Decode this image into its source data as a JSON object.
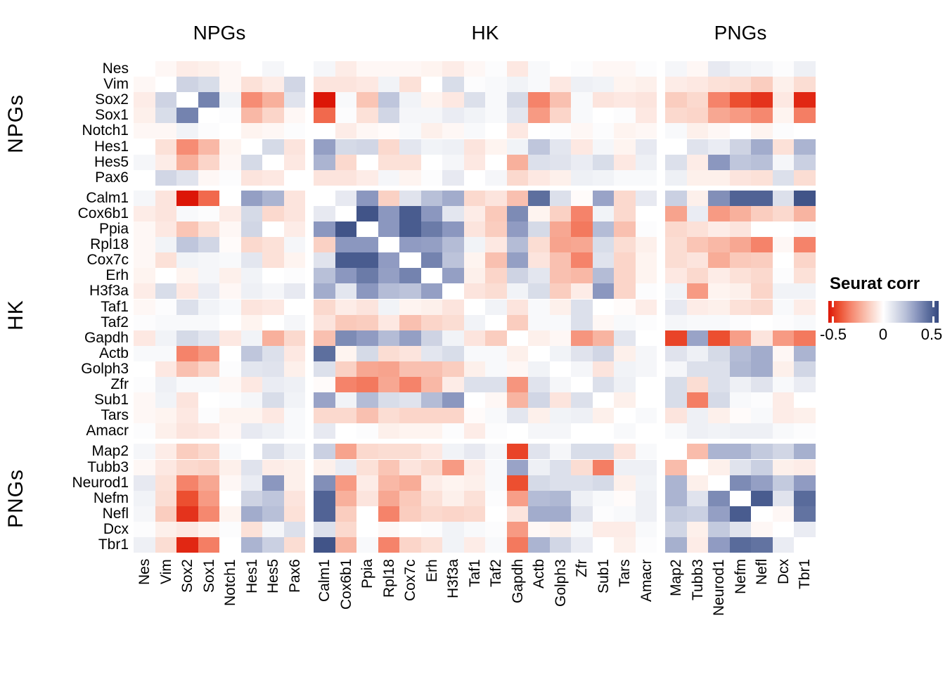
{
  "chart_data": {
    "type": "heatmap",
    "title": "",
    "legend": {
      "title": "Seurat corr",
      "ticks": [
        "-0.5",
        "0",
        "0.5"
      ],
      "range": [
        -0.5,
        0.5
      ],
      "low_color": "#DC1607",
      "mid_color": "#FFFFFF",
      "high_color": "#35487F"
    },
    "col_groups": [
      {
        "label": "NPGs",
        "span": 8
      },
      {
        "label": "HK",
        "span": 16
      },
      {
        "label": "PNGs",
        "span": 7
      }
    ],
    "row_groups": [
      {
        "label": "NPGs",
        "span": 8
      },
      {
        "label": "HK",
        "span": 16
      },
      {
        "label": "PNGs",
        "span": 7
      }
    ],
    "genes": [
      "Nes",
      "Vim",
      "Sox2",
      "Sox1",
      "Notch1",
      "Hes1",
      "Hes5",
      "Pax6",
      "Calm1",
      "Cox6b1",
      "Ppia",
      "Rpl18",
      "Cox7c",
      "Erh",
      "H3f3a",
      "Taf1",
      "Taf2",
      "Gapdh",
      "Actb",
      "Golph3",
      "Zfr",
      "Sub1",
      "Tars",
      "Amacr",
      "Map2",
      "Tubb3",
      "Neurod1",
      "Nefm",
      "Nefl",
      "Dcx",
      "Tbr1"
    ],
    "matrix": [
      [
        null,
        -0.02,
        -0.05,
        -0.04,
        -0.02,
        0.0,
        0.03,
        0.0,
        0.03,
        -0.05,
        -0.02,
        -0.02,
        -0.02,
        -0.03,
        -0.05,
        -0.02,
        0.01,
        -0.06,
        0.02,
        0.0,
        0.01,
        -0.02,
        -0.02,
        0.01,
        0.03,
        -0.02,
        0.07,
        0.04,
        0.03,
        0.01,
        0.05
      ],
      [
        -0.02,
        null,
        0.14,
        0.11,
        -0.02,
        -0.08,
        -0.05,
        0.13,
        -0.07,
        -0.07,
        -0.06,
        0.04,
        -0.08,
        0.0,
        0.11,
        0.01,
        0.02,
        0.04,
        0.02,
        -0.06,
        0.05,
        0.04,
        -0.03,
        -0.04,
        -0.05,
        -0.06,
        -0.08,
        -0.09,
        -0.13,
        -0.04,
        -0.09
      ],
      [
        -0.05,
        0.14,
        null,
        0.35,
        0.04,
        -0.28,
        -0.2,
        0.09,
        -0.5,
        0.02,
        -0.15,
        0.18,
        0.04,
        -0.03,
        -0.06,
        0.1,
        0.02,
        0.12,
        -0.3,
        -0.16,
        0.02,
        -0.07,
        -0.06,
        -0.07,
        -0.13,
        -0.1,
        -0.3,
        -0.4,
        -0.45,
        -0.06,
        -0.47
      ],
      [
        -0.04,
        0.11,
        0.35,
        null,
        0.01,
        -0.18,
        -0.11,
        -0.02,
        -0.35,
        0.01,
        -0.08,
        0.13,
        0.03,
        0.03,
        0.06,
        0.04,
        0.02,
        0.08,
        -0.25,
        -0.11,
        0.02,
        0.0,
        0.01,
        -0.06,
        -0.1,
        -0.11,
        -0.22,
        -0.25,
        -0.29,
        -0.03,
        -0.31
      ],
      [
        -0.02,
        -0.02,
        0.04,
        0.01,
        null,
        -0.03,
        -0.02,
        0.01,
        0.0,
        -0.05,
        -0.02,
        -0.01,
        0.02,
        -0.04,
        -0.02,
        0.02,
        0.0,
        -0.06,
        0.0,
        0.01,
        -0.02,
        0.01,
        -0.03,
        -0.02,
        0.02,
        -0.04,
        -0.02,
        0.0,
        -0.03,
        0.01,
        0.0
      ],
      [
        0.0,
        -0.08,
        -0.28,
        -0.18,
        -0.03,
        null,
        0.12,
        -0.07,
        0.28,
        0.12,
        0.13,
        -0.1,
        0.08,
        0.04,
        0.05,
        -0.07,
        -0.03,
        0.04,
        0.18,
        0.08,
        -0.06,
        0.03,
        -0.03,
        0.07,
        0.0,
        0.09,
        0.06,
        0.14,
        0.25,
        -0.08,
        0.23
      ],
      [
        0.03,
        -0.05,
        -0.2,
        -0.11,
        -0.02,
        0.12,
        null,
        -0.06,
        0.23,
        -0.1,
        0.0,
        -0.08,
        -0.08,
        0.0,
        0.03,
        -0.06,
        0.0,
        -0.2,
        0.1,
        0.09,
        0.06,
        0.11,
        -0.06,
        0.05,
        0.1,
        -0.05,
        0.3,
        0.18,
        0.2,
        0.03,
        0.15
      ],
      [
        0.0,
        0.13,
        0.09,
        -0.02,
        0.01,
        -0.07,
        -0.06,
        null,
        -0.07,
        -0.07,
        -0.05,
        0.03,
        -0.03,
        0.01,
        0.07,
        0.0,
        0.03,
        -0.1,
        -0.06,
        -0.04,
        0.05,
        0.04,
        0.02,
        0.02,
        0.05,
        -0.04,
        -0.04,
        -0.07,
        -0.08,
        0.1,
        -0.09
      ],
      [
        0.03,
        -0.07,
        -0.5,
        -0.35,
        0.0,
        0.28,
        0.23,
        -0.07,
        null,
        0.07,
        0.3,
        -0.12,
        0.09,
        0.2,
        0.25,
        -0.1,
        -0.07,
        -0.16,
        0.4,
        0.1,
        -0.01,
        0.27,
        -0.1,
        0.07,
        0.15,
        -0.04,
        0.32,
        0.43,
        0.43,
        0.1,
        0.47
      ],
      [
        -0.05,
        -0.07,
        0.02,
        0.01,
        -0.05,
        0.12,
        -0.1,
        -0.07,
        0.07,
        null,
        0.47,
        0.3,
        0.45,
        0.3,
        0.08,
        -0.05,
        -0.14,
        0.33,
        -0.03,
        -0.12,
        -0.3,
        0.04,
        -0.1,
        0.0,
        -0.23,
        0.06,
        -0.25,
        -0.2,
        -0.13,
        -0.1,
        -0.19
      ],
      [
        -0.02,
        -0.06,
        -0.15,
        -0.08,
        -0.02,
        0.13,
        0.0,
        -0.05,
        0.3,
        0.47,
        null,
        0.3,
        0.45,
        0.37,
        0.3,
        -0.07,
        -0.13,
        0.29,
        0.12,
        -0.22,
        -0.32,
        0.21,
        -0.16,
        0.01,
        -0.1,
        -0.08,
        -0.05,
        -0.07,
        0.0,
        0.0,
        0.02
      ],
      [
        -0.02,
        0.04,
        0.18,
        0.13,
        -0.01,
        -0.1,
        -0.08,
        0.03,
        -0.12,
        0.3,
        0.3,
        null,
        0.29,
        0.28,
        0.21,
        0.04,
        -0.06,
        0.21,
        -0.09,
        -0.23,
        -0.22,
        0.11,
        -0.09,
        -0.04,
        -0.09,
        -0.15,
        -0.18,
        -0.22,
        -0.3,
        -0.02,
        -0.3
      ],
      [
        -0.02,
        -0.08,
        0.04,
        0.03,
        0.02,
        0.08,
        -0.08,
        -0.03,
        0.09,
        0.45,
        0.45,
        0.29,
        null,
        0.35,
        0.19,
        -0.03,
        -0.16,
        0.28,
        -0.07,
        -0.16,
        -0.3,
        0.09,
        -0.11,
        -0.03,
        -0.09,
        -0.07,
        -0.21,
        -0.14,
        -0.13,
        0.0,
        -0.11
      ],
      [
        -0.03,
        0.0,
        -0.03,
        0.03,
        -0.04,
        0.04,
        0.0,
        0.01,
        0.2,
        0.3,
        0.37,
        0.28,
        0.35,
        null,
        0.28,
        -0.04,
        -0.11,
        0.14,
        0.08,
        -0.16,
        -0.18,
        0.21,
        -0.11,
        -0.03,
        -0.06,
        -0.1,
        -0.05,
        -0.08,
        -0.1,
        0.01,
        -0.08
      ],
      [
        -0.05,
        0.11,
        -0.06,
        0.06,
        -0.02,
        0.05,
        0.03,
        0.07,
        0.25,
        0.08,
        0.3,
        0.21,
        0.19,
        0.28,
        null,
        -0.07,
        -0.09,
        0.04,
        0.11,
        -0.13,
        -0.05,
        0.3,
        -0.11,
        0.01,
        0.04,
        -0.25,
        -0.03,
        -0.04,
        -0.11,
        0.04,
        0.04
      ],
      [
        -0.02,
        0.01,
        0.1,
        0.04,
        0.02,
        -0.07,
        -0.06,
        0.0,
        -0.1,
        -0.05,
        -0.07,
        0.04,
        -0.03,
        -0.04,
        -0.07,
        null,
        0.04,
        -0.07,
        0.02,
        -0.04,
        0.1,
        0.0,
        -0.01,
        -0.05,
        0.07,
        -0.05,
        -0.04,
        -0.08,
        -0.1,
        0.02,
        -0.05
      ],
      [
        0.01,
        0.02,
        0.02,
        0.02,
        0.0,
        -0.03,
        0.0,
        0.03,
        -0.07,
        -0.14,
        -0.13,
        -0.06,
        -0.16,
        -0.11,
        -0.09,
        0.04,
        null,
        -0.13,
        0.02,
        0.02,
        0.1,
        -0.02,
        0.02,
        0.01,
        0.03,
        0.02,
        0.02,
        0.01,
        0.0,
        0.01,
        0.02
      ],
      [
        -0.06,
        0.04,
        0.12,
        0.08,
        -0.06,
        0.04,
        -0.2,
        -0.1,
        -0.16,
        0.33,
        0.29,
        0.21,
        0.28,
        0.14,
        0.04,
        -0.07,
        -0.13,
        null,
        -0.04,
        -0.02,
        -0.26,
        -0.19,
        0.08,
        0.0,
        -0.42,
        0.27,
        -0.4,
        -0.24,
        -0.07,
        -0.25,
        -0.32
      ],
      [
        0.02,
        0.02,
        -0.3,
        -0.25,
        0.0,
        0.18,
        0.1,
        -0.06,
        0.4,
        -0.03,
        0.12,
        -0.09,
        -0.07,
        0.08,
        0.11,
        0.02,
        0.02,
        -0.04,
        null,
        0.04,
        0.09,
        0.13,
        -0.04,
        0.03,
        0.09,
        0.05,
        0.12,
        0.21,
        0.25,
        -0.02,
        0.23
      ],
      [
        0.0,
        -0.06,
        -0.16,
        -0.11,
        0.01,
        0.08,
        0.09,
        -0.04,
        0.1,
        -0.12,
        -0.22,
        -0.23,
        -0.16,
        -0.16,
        -0.13,
        -0.04,
        0.02,
        -0.02,
        0.04,
        null,
        0.03,
        -0.07,
        0.04,
        0.03,
        0.03,
        0.1,
        0.1,
        0.22,
        0.25,
        -0.04,
        0.13
      ],
      [
        0.01,
        0.05,
        0.02,
        0.02,
        -0.02,
        -0.06,
        0.06,
        0.05,
        -0.01,
        -0.3,
        -0.32,
        -0.22,
        -0.3,
        -0.18,
        -0.05,
        0.1,
        0.1,
        -0.26,
        0.09,
        0.03,
        null,
        0.1,
        0.05,
        0.0,
        0.11,
        -0.09,
        0.1,
        0.05,
        0.09,
        0.02,
        0.06
      ],
      [
        -0.02,
        0.04,
        -0.07,
        0.0,
        0.01,
        0.03,
        0.11,
        0.04,
        0.27,
        0.04,
        0.21,
        0.11,
        0.09,
        0.21,
        0.3,
        0.0,
        -0.02,
        -0.19,
        0.13,
        -0.07,
        0.1,
        null,
        -0.04,
        0.0,
        0.11,
        -0.31,
        0.12,
        0.02,
        0.01,
        -0.05,
        0.0
      ],
      [
        -0.02,
        -0.03,
        -0.06,
        0.01,
        -0.03,
        -0.03,
        -0.06,
        0.02,
        -0.1,
        -0.1,
        -0.16,
        -0.09,
        -0.11,
        -0.11,
        -0.11,
        -0.01,
        0.02,
        0.08,
        -0.04,
        0.04,
        0.05,
        -0.04,
        null,
        0.02,
        -0.07,
        0.05,
        -0.04,
        -0.01,
        0.02,
        -0.05,
        -0.04
      ],
      [
        0.01,
        -0.04,
        -0.07,
        -0.06,
        -0.02,
        0.07,
        0.05,
        0.02,
        0.07,
        0.0,
        0.01,
        -0.04,
        -0.03,
        -0.03,
        0.01,
        -0.05,
        0.01,
        0.0,
        0.03,
        0.03,
        0.0,
        0.0,
        0.02,
        null,
        0.02,
        0.05,
        0.04,
        0.05,
        0.05,
        0.02,
        0.01
      ],
      [
        0.03,
        -0.05,
        -0.13,
        -0.1,
        0.02,
        0.0,
        0.1,
        0.05,
        0.15,
        -0.23,
        -0.1,
        -0.09,
        -0.09,
        -0.06,
        0.04,
        0.07,
        0.03,
        -0.42,
        0.09,
        0.03,
        0.11,
        0.11,
        -0.07,
        0.02,
        null,
        -0.17,
        0.23,
        0.23,
        0.17,
        0.13,
        0.24
      ],
      [
        -0.02,
        -0.06,
        -0.1,
        -0.11,
        -0.04,
        0.09,
        -0.05,
        -0.04,
        -0.04,
        0.06,
        -0.08,
        -0.15,
        -0.07,
        -0.1,
        -0.25,
        -0.05,
        0.02,
        0.27,
        0.05,
        0.1,
        -0.09,
        -0.31,
        0.05,
        0.05,
        -0.17,
        null,
        -0.04,
        0.09,
        0.15,
        -0.04,
        -0.05
      ],
      [
        0.07,
        -0.08,
        -0.3,
        -0.22,
        -0.02,
        0.06,
        0.3,
        -0.04,
        0.32,
        -0.25,
        -0.05,
        -0.18,
        -0.21,
        -0.05,
        -0.03,
        -0.04,
        0.02,
        -0.4,
        0.12,
        0.1,
        0.1,
        0.12,
        -0.04,
        0.04,
        0.23,
        -0.04,
        null,
        0.33,
        0.28,
        0.17,
        0.29
      ],
      [
        0.04,
        -0.09,
        -0.4,
        -0.25,
        0.0,
        0.14,
        0.18,
        -0.07,
        0.43,
        -0.2,
        -0.07,
        -0.22,
        -0.14,
        -0.08,
        -0.04,
        -0.08,
        0.01,
        -0.24,
        0.21,
        0.22,
        0.05,
        0.02,
        -0.01,
        0.05,
        0.23,
        0.09,
        0.33,
        null,
        0.45,
        0.09,
        0.41
      ],
      [
        0.03,
        -0.13,
        -0.45,
        -0.29,
        -0.03,
        0.25,
        0.2,
        -0.08,
        0.43,
        -0.13,
        0.0,
        -0.3,
        -0.13,
        -0.1,
        -0.11,
        -0.1,
        0.0,
        -0.07,
        0.25,
        0.25,
        0.09,
        0.01,
        0.02,
        0.05,
        0.17,
        0.15,
        0.28,
        0.45,
        null,
        -0.02,
        0.39
      ],
      [
        0.01,
        -0.04,
        -0.06,
        -0.03,
        0.01,
        -0.08,
        0.03,
        0.1,
        0.1,
        -0.1,
        0.0,
        -0.02,
        0.0,
        0.01,
        0.04,
        0.02,
        0.01,
        -0.25,
        -0.02,
        -0.04,
        0.02,
        -0.05,
        -0.05,
        0.02,
        0.13,
        -0.04,
        0.17,
        0.09,
        -0.02,
        null,
        0.06
      ],
      [
        0.05,
        -0.09,
        -0.47,
        -0.31,
        0.0,
        0.23,
        0.15,
        -0.09,
        0.47,
        -0.19,
        0.02,
        -0.3,
        -0.11,
        -0.08,
        0.04,
        -0.05,
        0.02,
        -0.32,
        0.23,
        0.13,
        0.06,
        0.0,
        -0.04,
        0.01,
        0.24,
        -0.05,
        0.29,
        0.41,
        0.39,
        0.06,
        null
      ]
    ]
  }
}
